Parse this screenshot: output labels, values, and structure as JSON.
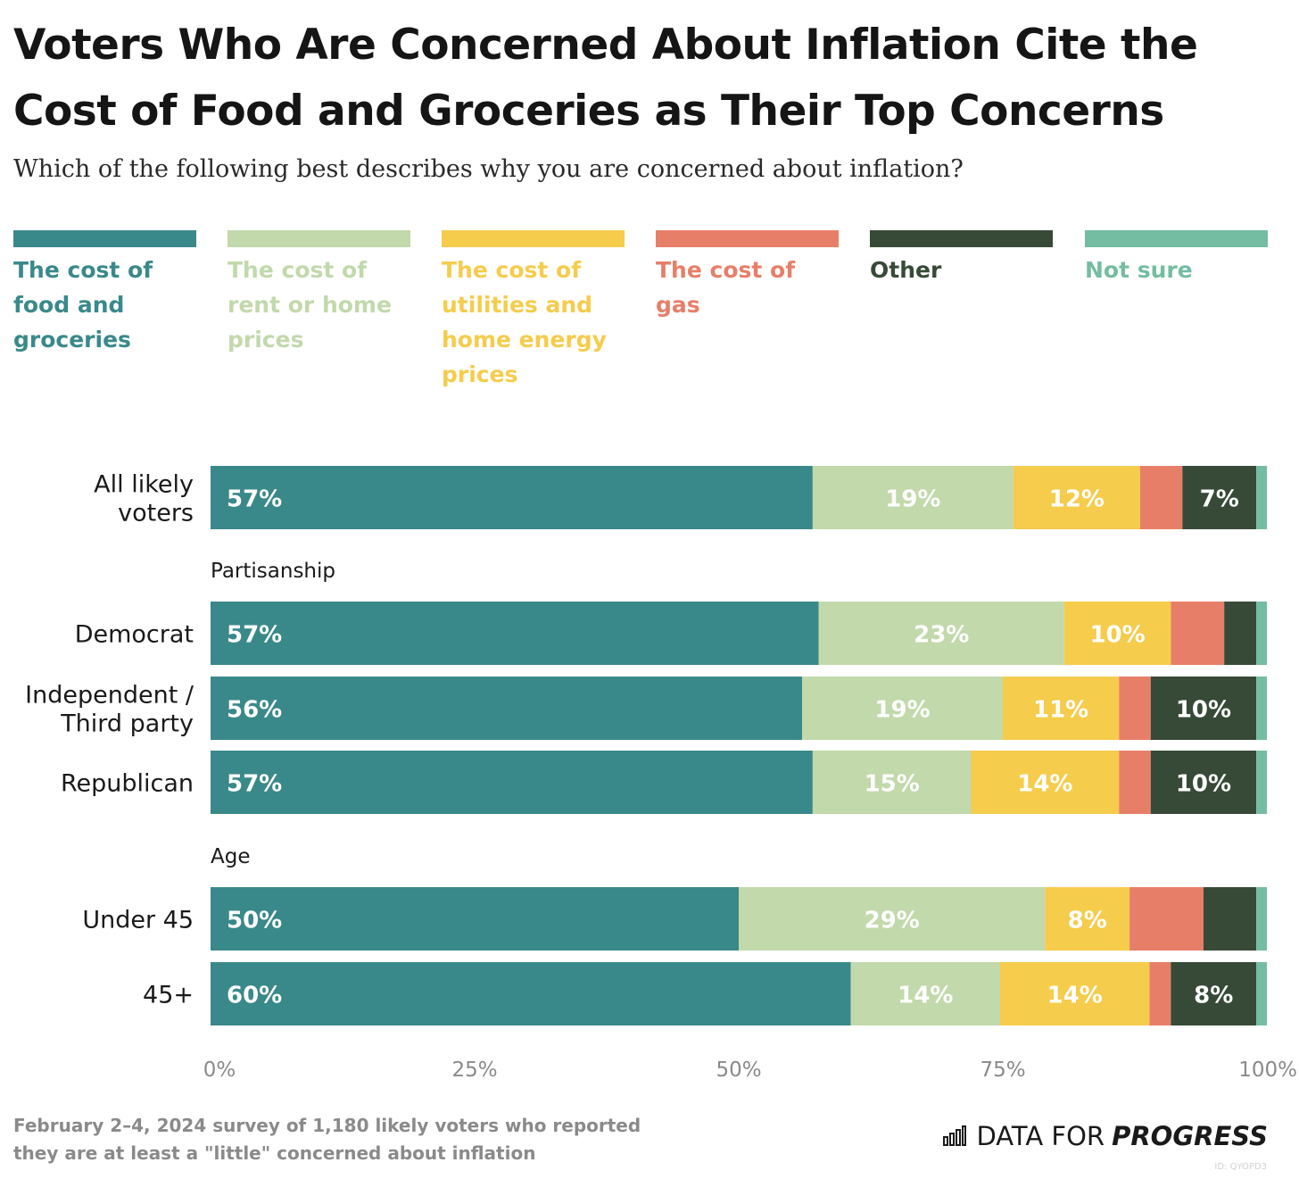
{
  "title": "Voters Who Are Concerned About Inflation Cite the Cost of Food and Groceries as Their Top Concerns",
  "subtitle": "Which of the following best describes why you are concerned about inflation?",
  "colors": {
    "food": "#3a898a",
    "rent": "#c2d9ab",
    "utilities": "#f5cc4c",
    "gas": "#e77f68",
    "other": "#374a37",
    "not_sure": "#74bda2",
    "axis_text": "#8a8a8a",
    "label_white": "#ffffff"
  },
  "legend": [
    {
      "label": "The cost of food and groceries",
      "color": "#3a898a",
      "text_color": "#3a898a"
    },
    {
      "label": "The cost of rent or home prices",
      "color": "#c2d9ab",
      "text_color": "#c2d9ab"
    },
    {
      "label": "The cost of utilities and home energy prices",
      "color": "#f5cc4c",
      "text_color": "#f5cc4c"
    },
    {
      "label": "The cost of gas",
      "color": "#e77f68",
      "text_color": "#e77f68"
    },
    {
      "label": "Other",
      "color": "#374a37",
      "text_color": "#374a37"
    },
    {
      "label": "Not sure",
      "color": "#74bda2",
      "text_color": "#74bda2"
    }
  ],
  "chart_data": {
    "type": "bar",
    "orientation": "horizontal",
    "stacked": true,
    "categories": [
      "All likely voters",
      "Democrat",
      "Independent / Third party",
      "Republican",
      "Under 45",
      "45+"
    ],
    "groups": [
      {
        "heading": "",
        "rows": [
          "All likely voters"
        ]
      },
      {
        "heading": "Partisanship",
        "rows": [
          "Democrat",
          "Independent / Third party",
          "Republican"
        ]
      },
      {
        "heading": "Age",
        "rows": [
          "Under 45",
          "45+"
        ]
      }
    ],
    "series": [
      {
        "name": "The cost of food and groceries",
        "values": [
          57,
          57,
          56,
          57,
          50,
          60
        ],
        "labels": [
          "57%",
          "57%",
          "56%",
          "57%",
          "50%",
          "60%"
        ]
      },
      {
        "name": "The cost of rent or home prices",
        "values": [
          19,
          23,
          19,
          15,
          29,
          14
        ],
        "labels": [
          "19%",
          "23%",
          "19%",
          "15%",
          "29%",
          "14%"
        ]
      },
      {
        "name": "The cost of utilities and home energy prices",
        "values": [
          12,
          10,
          11,
          14,
          8,
          14
        ],
        "labels": [
          "12%",
          "10%",
          "11%",
          "14%",
          "8%",
          "14%"
        ]
      },
      {
        "name": "The cost of gas",
        "values": [
          4,
          5,
          3,
          3,
          7,
          2
        ],
        "labels": [
          "",
          "",
          "",
          "",
          "",
          ""
        ]
      },
      {
        "name": "Other",
        "values": [
          7,
          3,
          10,
          10,
          5,
          8
        ],
        "labels": [
          "7%",
          "",
          "10%",
          "10%",
          "",
          "8%"
        ]
      },
      {
        "name": "Not sure",
        "values": [
          1,
          1,
          1,
          1,
          1,
          1
        ],
        "labels": [
          "",
          "",
          "",
          "",
          "",
          ""
        ]
      }
    ],
    "xlim": [
      0,
      100
    ],
    "xticks": [
      "0%",
      "25%",
      "50%",
      "75%",
      "100%"
    ],
    "legend_position": "top"
  },
  "footer": {
    "note": "February 2–4, 2024 survey of 1,180 likely voters who reported they are at least a \"little\" concerned about inflation",
    "brand_plain": "DATA FOR",
    "brand_bold": "PROGRESS",
    "credit": "ID: QYOPD3"
  }
}
